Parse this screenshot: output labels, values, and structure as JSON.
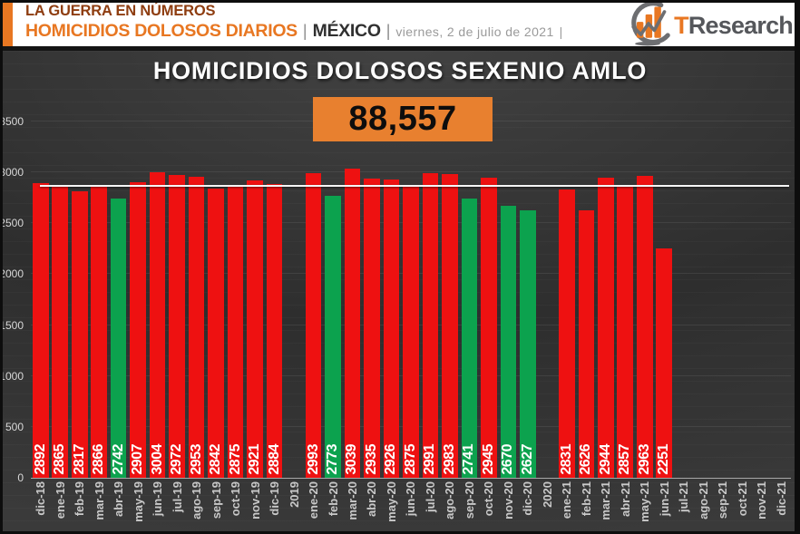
{
  "header": {
    "kicker": "LA GUERRA EN NÚMEROS",
    "subtitle": "HOMICIDIOS DOLOSOS DIARIOS",
    "sep_a": "|",
    "region": "MÉXICO",
    "sep_b": "|",
    "date": "viernes, 2 de julio de 2021",
    "sep_c": "|",
    "logo_t": "T",
    "logo_rest": "Research"
  },
  "chart_data": {
    "type": "bar",
    "title": "HOMICIDIOS DOLOSOS SEXENIO AMLO",
    "total": "88,557",
    "ylabel": "",
    "xlabel": "",
    "ymax": 3500,
    "yticks": [
      0,
      500,
      1000,
      1500,
      2000,
      2500,
      3000,
      3500
    ],
    "reference_line": 2855,
    "grid": "faint horizontal lines every 500",
    "colors": {
      "red": "#ee1111",
      "green": "#0ca24e"
    },
    "slots": [
      {
        "label": "dic-18",
        "value": 2892,
        "color": "red"
      },
      {
        "label": "ene-19",
        "value": 2865,
        "color": "red"
      },
      {
        "label": "feb-19",
        "value": 2817,
        "color": "red"
      },
      {
        "label": "mar-19",
        "value": 2866,
        "color": "red"
      },
      {
        "label": "abr-19",
        "value": 2742,
        "color": "green"
      },
      {
        "label": "may-19",
        "value": 2907,
        "color": "red"
      },
      {
        "label": "jun-19",
        "value": 3004,
        "color": "red"
      },
      {
        "label": "jul-19",
        "value": 2972,
        "color": "red"
      },
      {
        "label": "ago-19",
        "value": 2953,
        "color": "red"
      },
      {
        "label": "sep-19",
        "value": 2842,
        "color": "red"
      },
      {
        "label": "oct-19",
        "value": 2875,
        "color": "red"
      },
      {
        "label": "nov-19",
        "value": 2921,
        "color": "red"
      },
      {
        "label": "dic-19",
        "value": 2884,
        "color": "red"
      },
      {
        "label": "2019",
        "value": null,
        "color": null
      },
      {
        "label": "ene-20",
        "value": 2993,
        "color": "red"
      },
      {
        "label": "feb-20",
        "value": 2773,
        "color": "green"
      },
      {
        "label": "mar-20",
        "value": 3039,
        "color": "red"
      },
      {
        "label": "abr-20",
        "value": 2935,
        "color": "red"
      },
      {
        "label": "may-20",
        "value": 2926,
        "color": "red"
      },
      {
        "label": "jun-20",
        "value": 2875,
        "color": "red"
      },
      {
        "label": "jul-20",
        "value": 2991,
        "color": "red"
      },
      {
        "label": "ago-20",
        "value": 2983,
        "color": "red"
      },
      {
        "label": "sep-20",
        "value": 2741,
        "color": "green"
      },
      {
        "label": "oct-20",
        "value": 2945,
        "color": "red"
      },
      {
        "label": "nov-20",
        "value": 2670,
        "color": "green"
      },
      {
        "label": "dic-20",
        "value": 2627,
        "color": "green"
      },
      {
        "label": "2020",
        "value": null,
        "color": null
      },
      {
        "label": "ene-21",
        "value": 2831,
        "color": "red"
      },
      {
        "label": "feb-21",
        "value": 2626,
        "color": "red"
      },
      {
        "label": "mar-21",
        "value": 2944,
        "color": "red"
      },
      {
        "label": "abr-21",
        "value": 2857,
        "color": "red"
      },
      {
        "label": "may-21",
        "value": 2963,
        "color": "red"
      },
      {
        "label": "jun-21",
        "value": 2251,
        "color": "red"
      },
      {
        "label": "jul-21",
        "value": null,
        "color": null
      },
      {
        "label": "ago-21",
        "value": null,
        "color": null
      },
      {
        "label": "sep-21",
        "value": null,
        "color": null
      },
      {
        "label": "oct-21",
        "value": null,
        "color": null
      },
      {
        "label": "nov-21",
        "value": null,
        "color": null
      },
      {
        "label": "dic-21",
        "value": null,
        "color": null
      }
    ]
  }
}
